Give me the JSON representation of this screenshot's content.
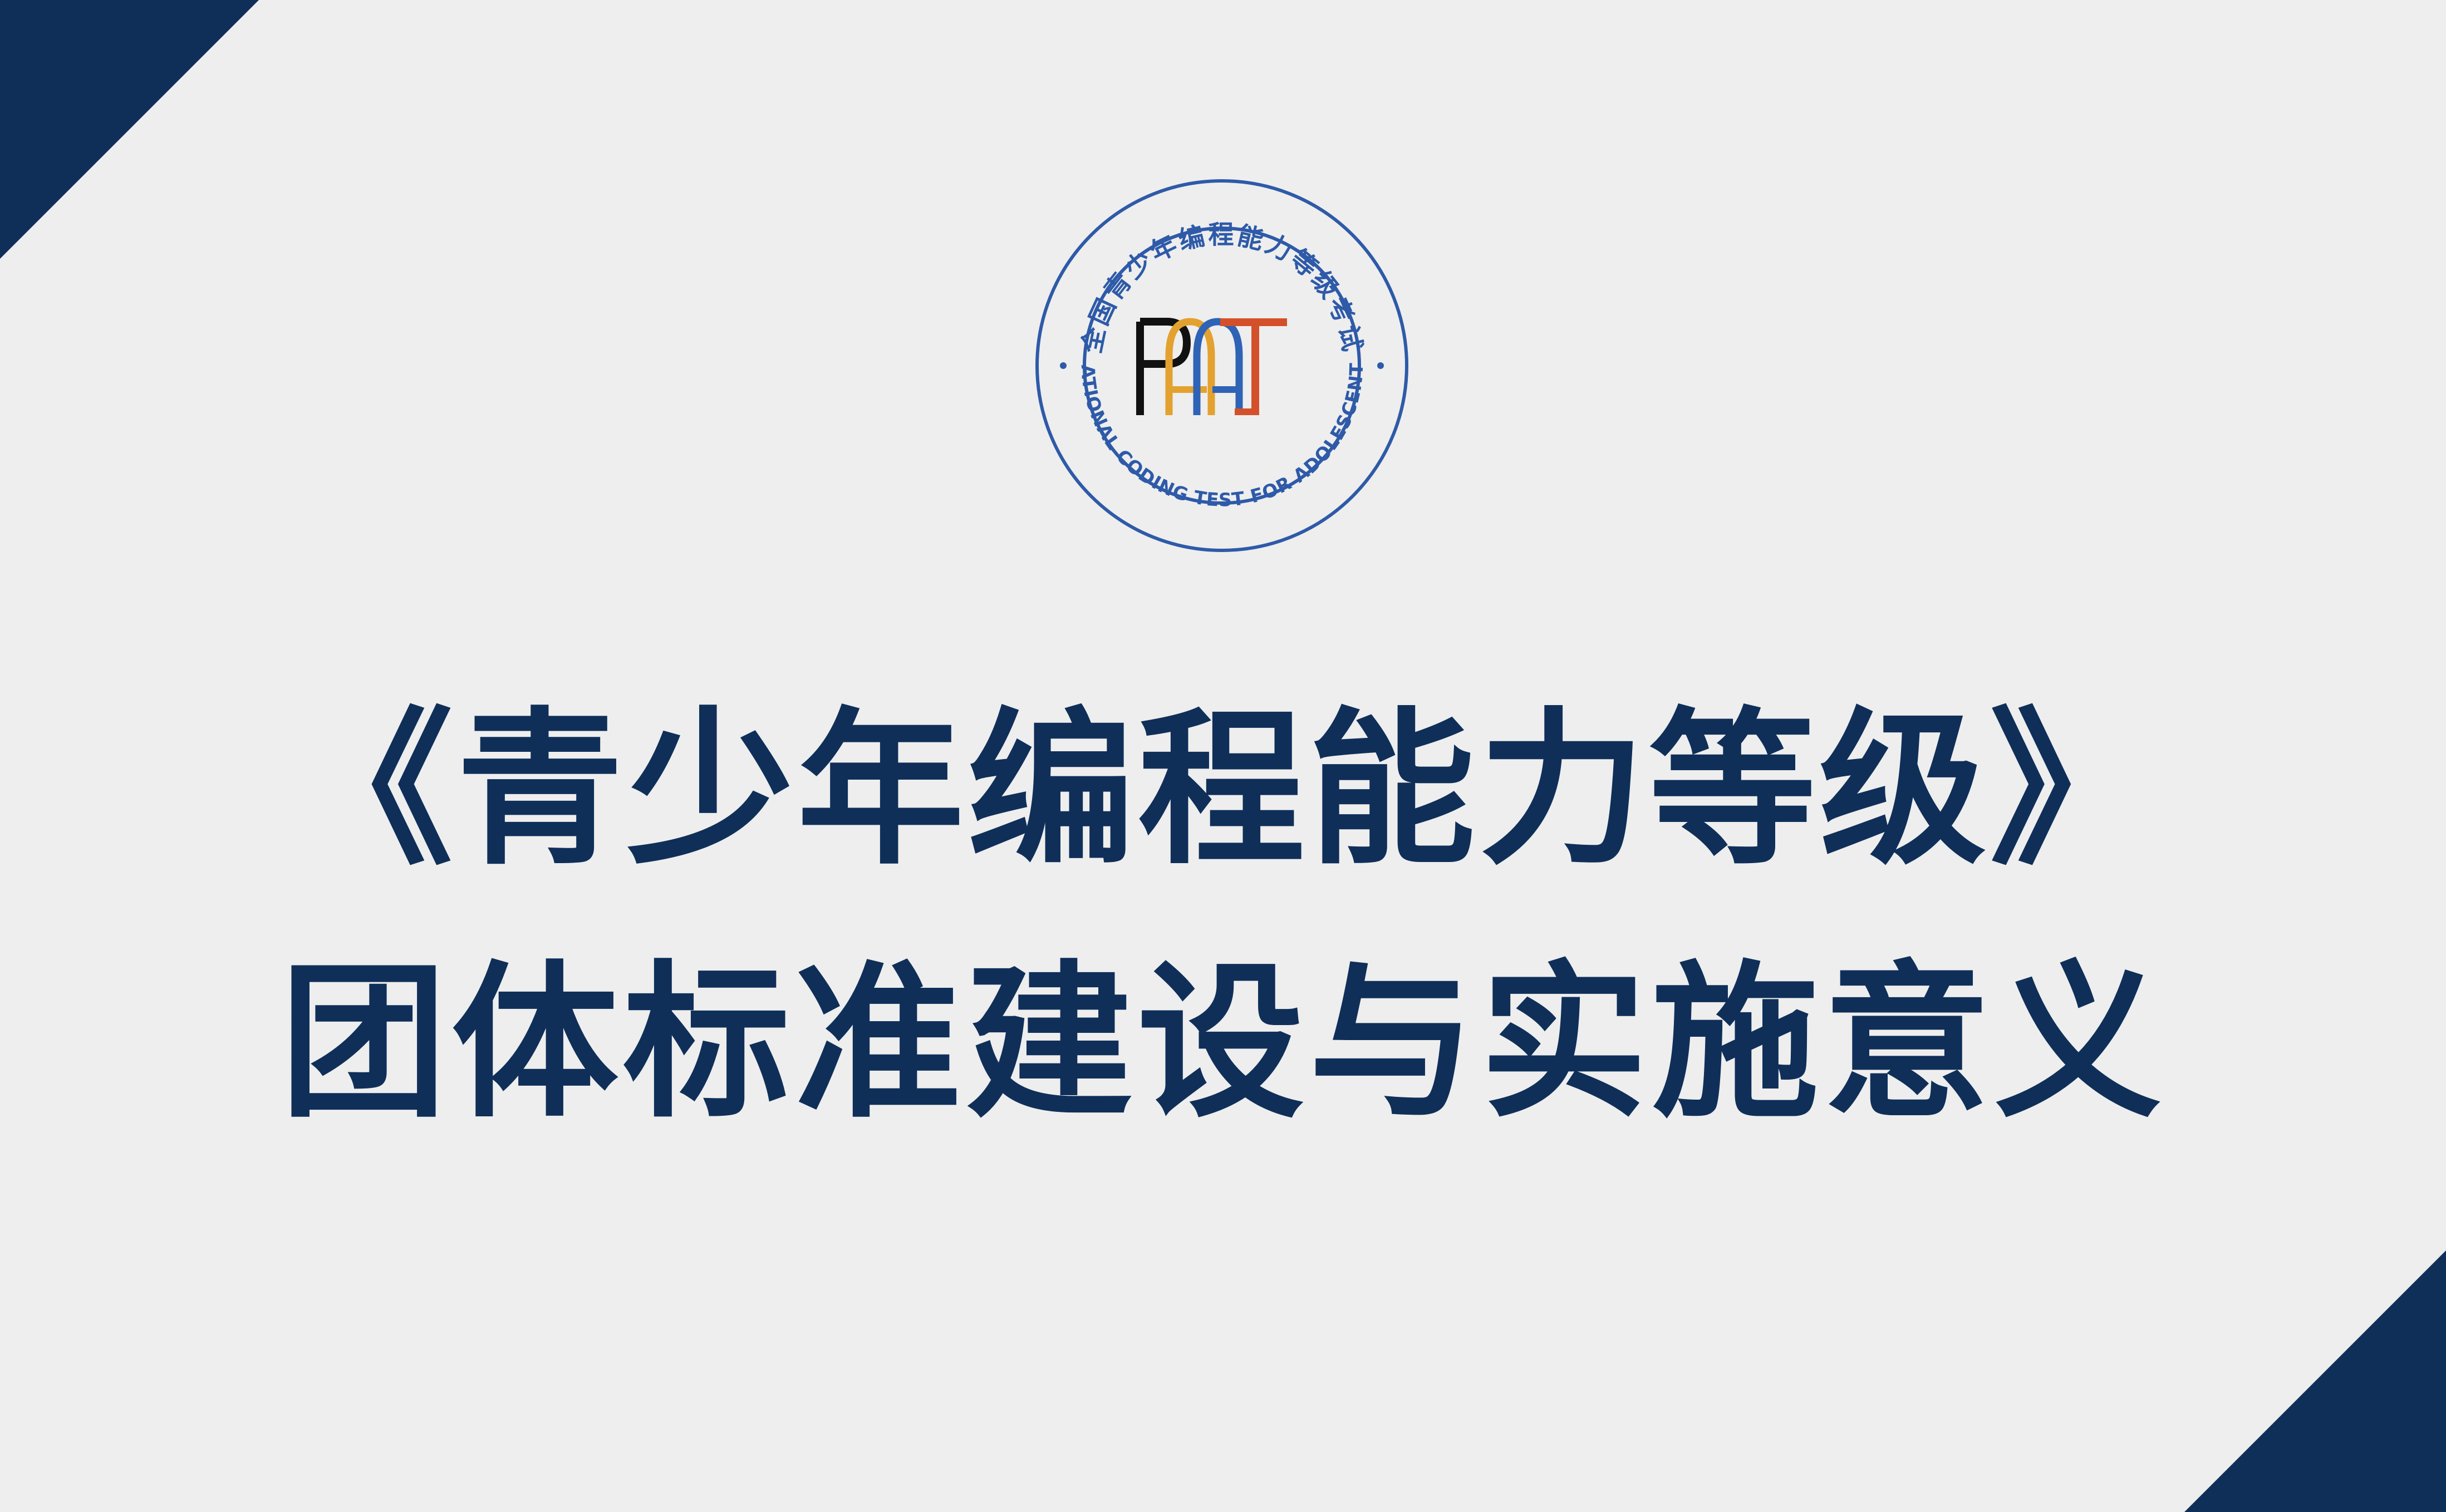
{
  "colors": {
    "background": "#eeeeee",
    "corner_navy": "#0f2f59",
    "title_navy": "#0f2f59",
    "seal_blue": "#2e5aa8",
    "logo_black": "#111111",
    "logo_yellow": "#e3a22f",
    "logo_blue": "#2f63b5",
    "logo_red": "#d4502a"
  },
  "logo": {
    "arc_text_top": "全国青少年编程能力等级考试",
    "arc_text_bottom": "NATIONAL CODING TEST FOR ADOLESCENTS",
    "mark": "PAAT",
    "icon": "seal-logo-icon"
  },
  "title": {
    "line1": "《青少年编程能力等级》",
    "line2": "团体标准建设与实施意义"
  }
}
